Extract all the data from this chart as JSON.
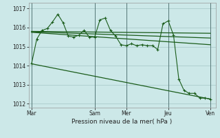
{
  "xlabel": "Pression niveau de la mer( hPa )",
  "background_color": "#cce8e8",
  "grid_color": "#b0d0d0",
  "line_color": "#1a5c1a",
  "vline_color": "#557777",
  "ylim": [
    1011.8,
    1017.3
  ],
  "yticks": [
    1012,
    1013,
    1014,
    1015,
    1016,
    1017
  ],
  "day_labels": [
    "Mar",
    "Sam",
    "Mer",
    "Jeu",
    "Ven"
  ],
  "day_positions": [
    0,
    108,
    162,
    234,
    306
  ],
  "series": [
    {
      "x": [
        0,
        9,
        18,
        27,
        36,
        45,
        54,
        63,
        72,
        81,
        90,
        99,
        108,
        117,
        126,
        135,
        144,
        153,
        162,
        171,
        180,
        189,
        198,
        207,
        216,
        225,
        234,
        243,
        252,
        261,
        270,
        279,
        288,
        297,
        306
      ],
      "y": [
        1014.1,
        1015.4,
        1015.85,
        1015.95,
        1016.3,
        1016.7,
        1016.25,
        1015.55,
        1015.5,
        1015.6,
        1015.85,
        1015.5,
        1015.5,
        1016.4,
        1016.5,
        1015.85,
        1015.55,
        1015.1,
        1015.05,
        1015.15,
        1015.05,
        1015.1,
        1015.05,
        1015.05,
        1014.85,
        1016.2,
        1016.35,
        1015.6,
        1013.3,
        1012.7,
        1012.55,
        1012.55,
        1012.3,
        1012.3,
        1012.25
      ],
      "marker": "+"
    },
    {
      "x": [
        0,
        306
      ],
      "y": [
        1015.8,
        1015.7
      ],
      "marker": null
    },
    {
      "x": [
        0,
        306
      ],
      "y": [
        1015.78,
        1015.45
      ],
      "marker": null
    },
    {
      "x": [
        0,
        306
      ],
      "y": [
        1015.75,
        1015.1
      ],
      "marker": null
    },
    {
      "x": [
        0,
        306
      ],
      "y": [
        1014.1,
        1012.25
      ],
      "marker": null
    }
  ]
}
